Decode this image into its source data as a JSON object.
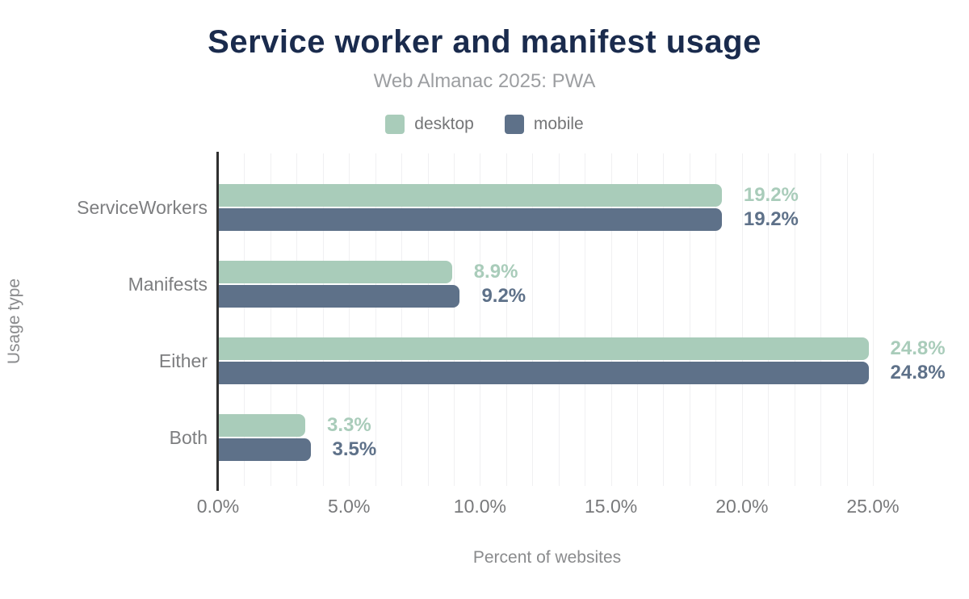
{
  "header": {
    "title": "Service worker and manifest usage",
    "subtitle": "Web Almanac 2025: PWA"
  },
  "legend": [
    {
      "label": "desktop",
      "color": "#a9ccba"
    },
    {
      "label": "mobile",
      "color": "#5e7189"
    }
  ],
  "axes": {
    "xlabel": "Percent of websites",
    "ylabel": "Usage type"
  },
  "chart_data": {
    "type": "bar",
    "orientation": "horizontal",
    "title": "Service worker and manifest usage",
    "subtitle": "Web Almanac 2025: PWA",
    "xlabel": "Percent of websites",
    "ylabel": "Usage type",
    "categories": [
      "ServiceWorkers",
      "Manifests",
      "Either",
      "Both"
    ],
    "series": [
      {
        "name": "desktop",
        "color": "#a9ccba",
        "values": [
          19.2,
          8.9,
          24.8,
          3.3
        ],
        "labels": [
          "19.2%",
          "8.9%",
          "24.8%",
          "3.3%"
        ]
      },
      {
        "name": "mobile",
        "color": "#5e7189",
        "values": [
          19.2,
          9.2,
          24.8,
          3.5
        ],
        "labels": [
          "19.2%",
          "9.2%",
          "24.8%",
          "3.5%"
        ]
      }
    ],
    "xlim": [
      0,
      25
    ],
    "xticks": [
      {
        "value": 0,
        "label": "0.0%"
      },
      {
        "value": 5,
        "label": "5.0%"
      },
      {
        "value": 10,
        "label": "10.0%"
      },
      {
        "value": 15,
        "label": "15.0%"
      },
      {
        "value": 20,
        "label": "20.0%"
      },
      {
        "value": 25,
        "label": "25.0%"
      }
    ],
    "grid": {
      "show": true,
      "interval_pct": 1,
      "legend_position": "top"
    }
  }
}
